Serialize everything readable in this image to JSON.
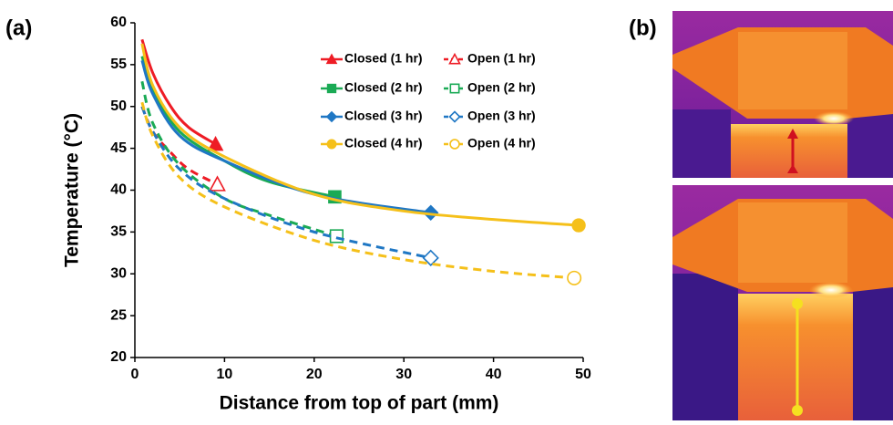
{
  "panel_labels": [
    "(a)",
    "(b)"
  ],
  "chart_data": {
    "type": "line",
    "xlabel": "Distance from top of part (mm)",
    "ylabel": "Temperature (°C)",
    "xlim": [
      0,
      50
    ],
    "xticks": [
      0,
      10,
      20,
      30,
      40,
      50
    ],
    "ylim": [
      20,
      60
    ],
    "yticks": [
      20,
      25,
      30,
      35,
      40,
      45,
      50,
      55,
      60
    ],
    "legend": "top-right",
    "series": [
      {
        "name": "Closed (1 hr)",
        "color": "#ee1c25",
        "marker": "triangle",
        "dashed": false,
        "x": [
          0.8,
          2,
          4,
          6,
          9
        ],
        "values": [
          58,
          54,
          50,
          47.5,
          45.5
        ]
      },
      {
        "name": "Open (1 hr)",
        "color": "#ee1c25",
        "marker": "triangle",
        "dashed": true,
        "x": [
          0.8,
          2,
          4,
          6,
          9.2
        ],
        "values": [
          50,
          47,
          44.5,
          42.5,
          40.7
        ]
      },
      {
        "name": "Closed (2 hr)",
        "color": "#1aaa55",
        "marker": "square",
        "dashed": false,
        "x": [
          0.8,
          2,
          5,
          10,
          15,
          22.3
        ],
        "values": [
          56,
          52,
          47,
          43.5,
          41,
          39.2
        ]
      },
      {
        "name": "Open (2 hr)",
        "color": "#1aaa55",
        "marker": "square",
        "dashed": true,
        "x": [
          0.8,
          2,
          5,
          10,
          15,
          22.5
        ],
        "values": [
          53,
          48,
          43,
          39,
          37,
          34.5
        ]
      },
      {
        "name": "Closed (3 hr)",
        "color": "#1f77c4",
        "marker": "diamond",
        "dashed": false,
        "x": [
          0.8,
          2,
          5,
          10,
          20,
          33
        ],
        "values": [
          55.5,
          51.5,
          46.5,
          43.5,
          39.5,
          37.3
        ]
      },
      {
        "name": "Open (3 hr)",
        "color": "#1f77c4",
        "marker": "diamond",
        "dashed": true,
        "x": [
          0.8,
          2,
          5,
          10,
          20,
          33
        ],
        "values": [
          50,
          47,
          42.5,
          39,
          35,
          31.9
        ]
      },
      {
        "name": "Closed (4 hr)",
        "color": "#f5c01a",
        "marker": "circle",
        "dashed": false,
        "x": [
          0.8,
          2,
          5,
          10,
          20,
          30,
          40,
          49.5
        ],
        "values": [
          57.5,
          52.5,
          47.5,
          44,
          39.5,
          37.5,
          36.5,
          35.8
        ]
      },
      {
        "name": "Open (4 hr)",
        "color": "#f5c01a",
        "marker": "circle",
        "dashed": true,
        "x": [
          0.8,
          2,
          5,
          10,
          20,
          30,
          40,
          49
        ],
        "values": [
          50.5,
          46.5,
          41.5,
          38,
          34,
          31.7,
          30.3,
          29.5
        ]
      }
    ]
  }
}
